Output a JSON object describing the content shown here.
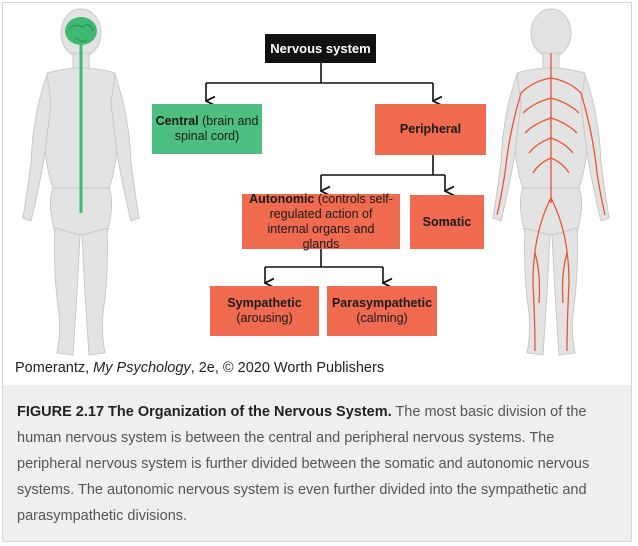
{
  "diagram": {
    "root": "Nervous system",
    "central": {
      "bold": "Central",
      "rest": " (brain and spinal cord)"
    },
    "peripheral": "Peripheral",
    "autonomic": {
      "bold": "Autonomic",
      "rest": " (controls self-regulated action of internal organs and glands"
    },
    "somatic": "Somatic",
    "sympathetic": {
      "bold": "Sympathetic",
      "sub": "(arousing)"
    },
    "parasympathetic": {
      "bold": "Parasympathetic",
      "sub": "(calming)"
    }
  },
  "colors": {
    "root": "#111111",
    "central": "#4dbf80",
    "peripheral": "#ef6a4f",
    "body": "#e3e3e3",
    "nerves": "#e8552f"
  },
  "credit": {
    "author": "Pomerantz, ",
    "book": "My Psychology",
    "rest": ", 2e, © 2020 Worth Publishers"
  },
  "caption": {
    "title": "FIGURE 2.17 The Organization of the Nervous System.",
    "text": " The most basic division of the human nervous system is between the central and peripheral nervous systems. The peripheral nervous system is further divided between the somatic and autonomic nervous systems. The autonomic nervous system is even further divided into the sympathetic and parasympathetic divisions."
  }
}
